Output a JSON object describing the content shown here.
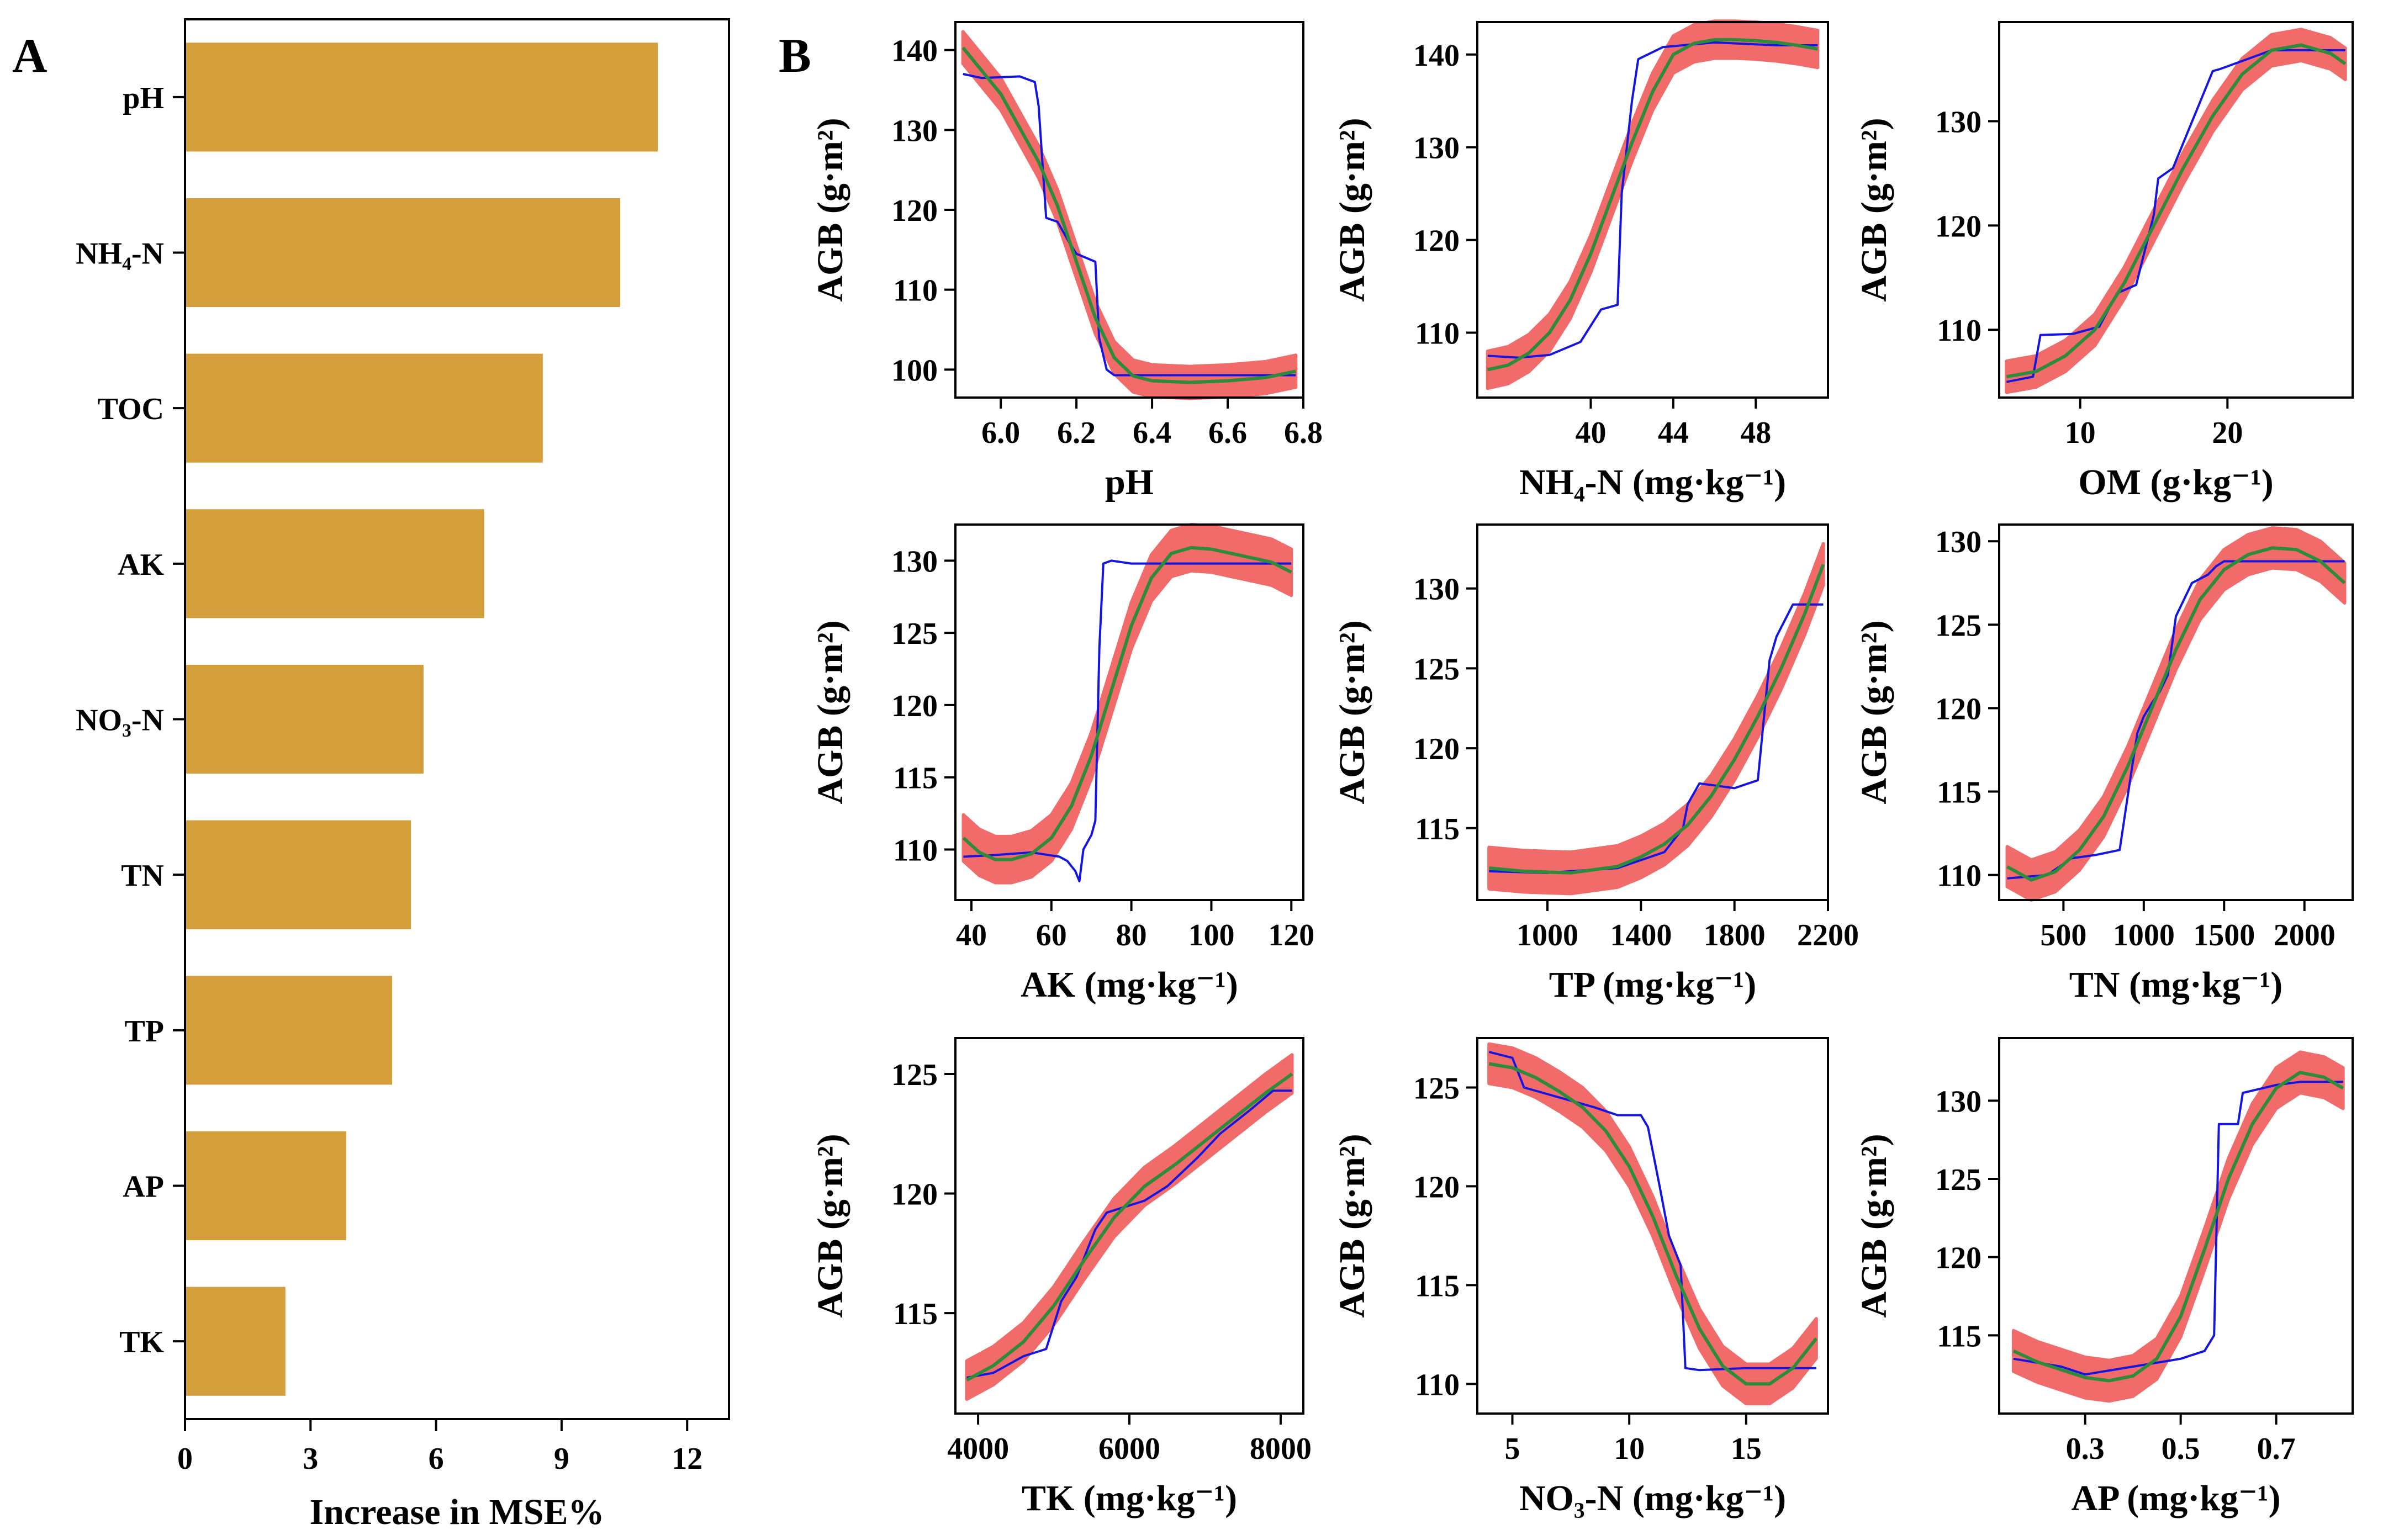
{
  "colors": {
    "bar": "#d49f3a",
    "band": "#f26b6b",
    "smooth": "#2e8b3a",
    "raw": "#1515e0",
    "axis": "#000000"
  },
  "panel_letters": {
    "a": "A",
    "b": "B"
  },
  "chart_data": [
    {
      "id": "A",
      "type": "bar",
      "orientation": "horizontal",
      "categories": [
        "pH",
        "NH₄-N",
        "TOC",
        "AK",
        "NO₃-N",
        "TN",
        "TP",
        "AP",
        "TK"
      ],
      "values": [
        11.3,
        10.4,
        8.55,
        7.15,
        5.7,
        5.4,
        4.95,
        3.85,
        2.4
      ],
      "xlabel": "Increase in MSE%",
      "xlim": [
        0,
        13
      ],
      "xticks": [
        0,
        3,
        6,
        9,
        12
      ]
    },
    {
      "id": "B1",
      "type": "line",
      "xlabel": "pH",
      "ylabel": "AGB (g·m²)",
      "xlim": [
        5.88,
        6.8
      ],
      "ylim": [
        96.5,
        143.5
      ],
      "xticks": [
        6.0,
        6.2,
        6.4,
        6.6,
        6.8
      ],
      "xtick_labels": [
        "6.0",
        "6.2",
        "6.4",
        "6.6",
        "6.8"
      ],
      "yticks": [
        100,
        110,
        120,
        130,
        140
      ],
      "ytick_labels": [
        "100",
        "110",
        "120",
        "130",
        "140"
      ],
      "smooth": {
        "x": [
          5.9,
          6.0,
          6.1,
          6.15,
          6.2,
          6.25,
          6.3,
          6.35,
          6.4,
          6.5,
          6.6,
          6.7,
          6.78
        ],
        "y": [
          140.3,
          134.5,
          126,
          120.5,
          113.5,
          106.5,
          101.5,
          99.2,
          98.6,
          98.4,
          98.6,
          99,
          99.8
        ]
      },
      "band_halfwidth": 2,
      "raw": {
        "x": [
          5.9,
          5.95,
          6.05,
          6.09,
          6.1,
          6.12,
          6.15,
          6.18,
          6.2,
          6.25,
          6.26,
          6.28,
          6.3,
          6.4,
          6.6,
          6.78
        ],
        "y": [
          137,
          136.5,
          136.7,
          136,
          133,
          119,
          118.5,
          116,
          114.5,
          113.5,
          104,
          100,
          99.3,
          99.3,
          99.3,
          99.3
        ]
      }
    },
    {
      "id": "B2",
      "type": "line",
      "xlabel": "NH₄-N (mg·kg⁻¹)",
      "ylabel": "AGB (g·m²)",
      "xlim": [
        34.5,
        51.5
      ],
      "ylim": [
        103,
        143.5
      ],
      "xticks": [
        40,
        44,
        48
      ],
      "xtick_labels": [
        "40",
        "44",
        "48"
      ],
      "yticks": [
        110,
        120,
        130,
        140
      ],
      "ytick_labels": [
        "110",
        "120",
        "130",
        "140"
      ],
      "smooth": {
        "x": [
          35,
          36,
          37,
          38,
          39,
          40,
          41,
          42,
          43,
          44,
          45,
          46,
          47,
          48,
          49,
          50,
          51
        ],
        "y": [
          106,
          106.5,
          107.8,
          110,
          113.5,
          118.5,
          124.5,
          130.5,
          136,
          140,
          141.2,
          141.6,
          141.6,
          141.5,
          141.3,
          141,
          140.6
        ]
      },
      "band_halfwidth": 2,
      "raw": {
        "x": [
          35,
          36.5,
          38,
          39.5,
          40.5,
          41.3,
          41.5,
          42,
          42.3,
          43.5,
          46,
          49,
          51
        ],
        "y": [
          107.5,
          107.3,
          107.6,
          109,
          112.5,
          113,
          125,
          135,
          139.5,
          140.8,
          141.3,
          141,
          141
        ]
      }
    },
    {
      "id": "B3",
      "type": "line",
      "xlabel": "OM (g·kg⁻¹)",
      "ylabel": "AGB (g·m²)",
      "xlim": [
        4.5,
        28.5
      ],
      "ylim": [
        103.5,
        139.5
      ],
      "xticks": [
        10,
        20
      ],
      "xtick_labels": [
        "10",
        "20"
      ],
      "yticks": [
        110,
        120,
        130
      ],
      "ytick_labels": [
        "110",
        "120",
        "130"
      ],
      "smooth": {
        "x": [
          5,
          7,
          9,
          11,
          13,
          15,
          17,
          19,
          21,
          23,
          25,
          27,
          28
        ],
        "y": [
          105.5,
          106,
          107.5,
          110,
          114.5,
          120,
          125.5,
          130.5,
          134.5,
          136.8,
          137.3,
          136.5,
          135.5
        ]
      },
      "band_halfwidth": 1.5,
      "raw": {
        "x": [
          5,
          6.8,
          7.3,
          9.5,
          11.3,
          12.5,
          13.8,
          15,
          15.3,
          16.3,
          19,
          19.5,
          23,
          28
        ],
        "y": [
          105,
          105.5,
          109.5,
          109.6,
          110.3,
          113.5,
          114.3,
          121,
          124.5,
          125.5,
          134.8,
          135,
          136.8,
          136.8
        ]
      }
    },
    {
      "id": "B4",
      "type": "line",
      "xlabel": "AK (mg·kg⁻¹)",
      "ylabel": "AGB (g·m²)",
      "xlim": [
        36,
        123
      ],
      "ylim": [
        106.5,
        132.5
      ],
      "xticks": [
        40,
        60,
        80,
        100,
        120
      ],
      "xtick_labels": [
        "40",
        "60",
        "80",
        "100",
        "120"
      ],
      "yticks": [
        110,
        115,
        120,
        125,
        130
      ],
      "ytick_labels": [
        "110",
        "115",
        "120",
        "125",
        "130"
      ],
      "smooth": {
        "x": [
          38,
          42,
          46,
          50,
          55,
          60,
          65,
          70,
          75,
          80,
          85,
          90,
          95,
          100,
          105,
          110,
          115,
          120
        ],
        "y": [
          110.8,
          109.8,
          109.3,
          109.3,
          109.7,
          110.8,
          113,
          116.5,
          121,
          125.5,
          128.8,
          130.5,
          130.9,
          130.8,
          130.5,
          130.2,
          129.9,
          129.2
        ]
      },
      "band_halfwidth": 1.6,
      "raw": {
        "x": [
          38,
          45,
          55,
          62,
          64,
          66,
          67,
          68,
          70,
          71,
          72,
          73,
          75,
          80,
          90,
          100,
          110,
          120
        ],
        "y": [
          109.5,
          109.6,
          109.8,
          109.5,
          109.2,
          108.5,
          107.8,
          110,
          111,
          112,
          124,
          129.8,
          130,
          129.8,
          129.8,
          129.8,
          129.8,
          129.8
        ]
      }
    },
    {
      "id": "B5",
      "type": "line",
      "xlabel": "TP (mg·kg⁻¹)",
      "ylabel": "AGB (g·m²)",
      "xlim": [
        700,
        2200
      ],
      "ylim": [
        110.5,
        134
      ],
      "xticks": [
        1000,
        1400,
        1800,
        2200
      ],
      "xtick_labels": [
        "1000",
        "1400",
        "1800",
        "2200"
      ],
      "yticks": [
        115,
        120,
        125,
        130
      ],
      "ytick_labels": [
        "115",
        "120",
        "125",
        "130"
      ],
      "smooth": {
        "x": [
          750,
          900,
          1100,
          1300,
          1400,
          1500,
          1600,
          1700,
          1800,
          1900,
          2000,
          2100,
          2180
        ],
        "y": [
          112.5,
          112.3,
          112.2,
          112.6,
          113.2,
          114,
          115.2,
          117,
          119.3,
          122,
          125,
          128.4,
          131.5
        ]
      },
      "band_halfwidth": 1.3,
      "raw": {
        "x": [
          750,
          1000,
          1300,
          1500,
          1580,
          1600,
          1650,
          1800,
          1900,
          1950,
          1980,
          2050,
          2180
        ],
        "y": [
          112.3,
          112.2,
          112.5,
          113.5,
          115,
          116.5,
          117.8,
          117.5,
          118,
          125.5,
          127,
          129,
          129
        ]
      }
    },
    {
      "id": "B6",
      "type": "line",
      "xlabel": "TN (mg·kg⁻¹)",
      "ylabel": "AGB (g·m²)",
      "xlim": [
        100,
        2300
      ],
      "ylim": [
        108.5,
        131
      ],
      "xticks": [
        500,
        1000,
        1500,
        2000
      ],
      "xtick_labels": [
        "500",
        "1000",
        "1500",
        "2000"
      ],
      "yticks": [
        110,
        115,
        120,
        125,
        130
      ],
      "ytick_labels": [
        "110",
        "115",
        "120",
        "125",
        "130"
      ],
      "smooth": {
        "x": [
          150,
          300,
          450,
          600,
          750,
          900,
          1050,
          1200,
          1350,
          1500,
          1650,
          1800,
          1950,
          2100,
          2250
        ],
        "y": [
          110.5,
          109.7,
          110.2,
          111.5,
          113.5,
          116.5,
          120,
          123.5,
          126.5,
          128.3,
          129.2,
          129.6,
          129.5,
          128.8,
          127.5
        ]
      },
      "band_halfwidth": 1.2,
      "raw": {
        "x": [
          150,
          400,
          550,
          700,
          850,
          920,
          960,
          1000,
          1050,
          1100,
          1150,
          1200,
          1250,
          1300,
          1400,
          1450,
          1500,
          2250
        ],
        "y": [
          109.8,
          110,
          111,
          111.2,
          111.5,
          116,
          118.5,
          119.5,
          120.3,
          121,
          122,
          125.5,
          126.5,
          127.5,
          128,
          128.5,
          128.8,
          128.8
        ]
      }
    },
    {
      "id": "B7",
      "type": "line",
      "xlabel": "TK (mg·kg⁻¹)",
      "ylabel": "AGB (g·m²)",
      "xlim": [
        3700,
        8300
      ],
      "ylim": [
        110.8,
        126.5
      ],
      "xticks": [
        4000,
        6000,
        8000
      ],
      "xtick_labels": [
        "4000",
        "6000",
        "8000"
      ],
      "yticks": [
        115,
        120,
        125
      ],
      "ytick_labels": [
        "115",
        "120",
        "125"
      ],
      "smooth": {
        "x": [
          3850,
          4200,
          4600,
          5000,
          5400,
          5800,
          6200,
          6600,
          7000,
          7400,
          7800,
          8150
        ],
        "y": [
          112.2,
          112.8,
          113.8,
          115.3,
          117.2,
          119,
          120.3,
          121.2,
          122.2,
          123.2,
          124.2,
          125
        ]
      },
      "band_halfwidth": 0.8,
      "raw": {
        "x": [
          3850,
          4200,
          4600,
          4900,
          5100,
          5300,
          5550,
          5700,
          5800,
          6200,
          6500,
          6900,
          7200,
          7600,
          7900,
          8150
        ],
        "y": [
          112.3,
          112.5,
          113.2,
          113.5,
          115.5,
          116.5,
          118.5,
          119.2,
          119.3,
          119.7,
          120.3,
          121.5,
          122.5,
          123.5,
          124.3,
          124.3
        ]
      }
    },
    {
      "id": "B8",
      "type": "line",
      "xlabel": "NO₃-N (mg·kg⁻¹)",
      "ylabel": "AGB (g·m²)",
      "xlim": [
        3.5,
        18.5
      ],
      "ylim": [
        108.5,
        127.5
      ],
      "xticks": [
        5,
        10,
        15
      ],
      "xtick_labels": [
        "5",
        "10",
        "15"
      ],
      "yticks": [
        110,
        115,
        120,
        125
      ],
      "ytick_labels": [
        "110",
        "115",
        "120",
        "125"
      ],
      "smooth": {
        "x": [
          4,
          5,
          6,
          7,
          8,
          9,
          10,
          11,
          12,
          13,
          14,
          15,
          16,
          17,
          18
        ],
        "y": [
          126.2,
          126,
          125.5,
          124.8,
          124,
          122.8,
          121,
          118.5,
          115.5,
          112.8,
          110.9,
          110,
          110,
          110.8,
          112.3
        ]
      },
      "band_halfwidth": 1,
      "raw": {
        "x": [
          4,
          5,
          5.5,
          7,
          8.5,
          9.5,
          10.5,
          10.8,
          11.3,
          11.7,
          12.2,
          12.4,
          13,
          15,
          18
        ],
        "y": [
          126.8,
          126.5,
          125,
          124.5,
          124,
          123.6,
          123.6,
          123,
          120,
          117.5,
          116,
          110.8,
          110.7,
          110.8,
          110.8
        ]
      }
    },
    {
      "id": "B9",
      "type": "line",
      "xlabel": "AP (mg·kg⁻¹)",
      "ylabel": "AGB (g·m²)",
      "xlim": [
        0.12,
        0.86
      ],
      "ylim": [
        110,
        134
      ],
      "xticks": [
        0.3,
        0.5,
        0.7
      ],
      "xtick_labels": [
        "0.3",
        "0.5",
        "0.7"
      ],
      "yticks": [
        115,
        120,
        125,
        130
      ],
      "ytick_labels": [
        "115",
        "120",
        "125",
        "130"
      ],
      "smooth": {
        "x": [
          0.15,
          0.2,
          0.25,
          0.3,
          0.35,
          0.4,
          0.45,
          0.5,
          0.55,
          0.6,
          0.65,
          0.7,
          0.75,
          0.8,
          0.84
        ],
        "y": [
          114,
          113.3,
          112.8,
          112.3,
          112.1,
          112.4,
          113.5,
          116.2,
          120.5,
          125,
          128.5,
          130.8,
          131.8,
          131.5,
          130.8
        ]
      },
      "band_halfwidth": 1.3,
      "raw": {
        "x": [
          0.15,
          0.25,
          0.3,
          0.4,
          0.5,
          0.55,
          0.57,
          0.58,
          0.62,
          0.63,
          0.7,
          0.75,
          0.84
        ],
        "y": [
          113.5,
          113,
          112.5,
          113,
          113.5,
          114,
          115,
          128.5,
          128.5,
          130.5,
          131,
          131.2,
          131.2
        ]
      }
    }
  ]
}
